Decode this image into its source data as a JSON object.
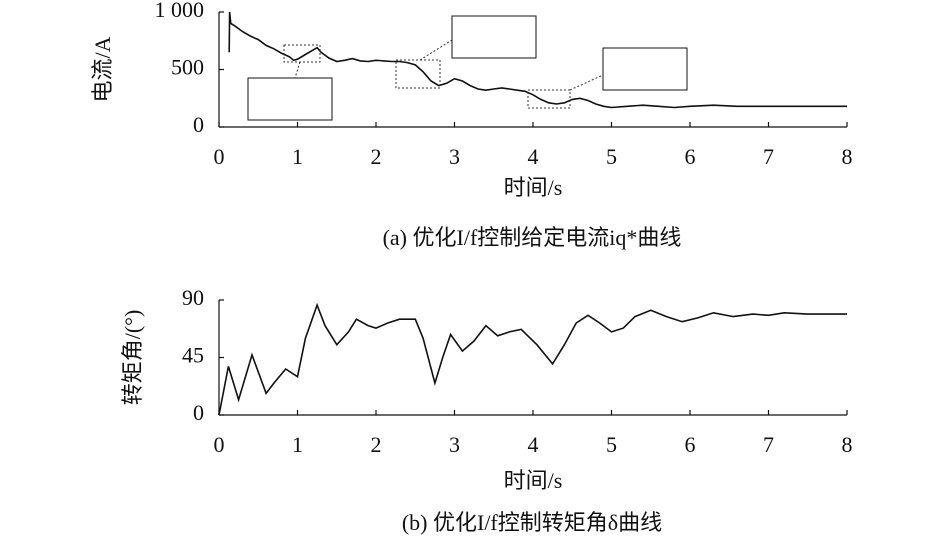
{
  "chart_data": [
    {
      "type": "line",
      "caption": "(a) 优化I/f控制给定电流iq*曲线",
      "x_label": "时间/s",
      "y_label": "电流/A",
      "xlim": [
        0,
        8
      ],
      "xticks": [
        0,
        1,
        2,
        3,
        4,
        5,
        6,
        7,
        8
      ],
      "ylim": [
        0,
        1000
      ],
      "yticks": [
        0,
        500,
        {
          "value": 1000,
          "label": "1 000"
        }
      ],
      "series": [
        {
          "color": "#111111",
          "x": [
            0.13,
            0.135,
            0.15,
            0.2,
            0.3,
            0.4,
            0.5,
            0.6,
            0.7,
            0.8,
            0.9,
            0.95,
            1.0,
            1.1,
            1.2,
            1.25,
            1.3,
            1.4,
            1.5,
            1.6,
            1.7,
            1.8,
            1.9,
            2.0,
            2.1,
            2.2,
            2.3,
            2.4,
            2.5,
            2.6,
            2.7,
            2.8,
            2.9,
            3.0,
            3.1,
            3.2,
            3.3,
            3.4,
            3.5,
            3.6,
            3.7,
            3.8,
            3.9,
            4.0,
            4.1,
            4.2,
            4.3,
            4.4,
            4.5,
            4.6,
            4.7,
            4.8,
            4.9,
            5.0,
            5.2,
            5.4,
            5.6,
            5.8,
            6.0,
            6.3,
            6.6,
            7.0,
            7.5,
            8.0
          ],
          "values": [
            650,
            1000,
            900,
            880,
            830,
            790,
            760,
            710,
            680,
            640,
            610,
            580,
            590,
            630,
            670,
            690,
            650,
            600,
            570,
            580,
            595,
            575,
            570,
            580,
            575,
            570,
            570,
            560,
            540,
            480,
            400,
            360,
            380,
            420,
            400,
            360,
            330,
            320,
            330,
            340,
            330,
            320,
            310,
            280,
            240,
            210,
            200,
            210,
            240,
            250,
            230,
            200,
            180,
            170,
            180,
            190,
            180,
            170,
            180,
            190,
            180,
            180,
            180,
            180
          ]
        }
      ]
    },
    {
      "type": "line",
      "caption": "(b) 优化I/f控制转矩角δ曲线",
      "x_label": "时间/s",
      "y_label": "转矩角/(°)",
      "xlim": [
        0,
        8
      ],
      "xticks": [
        0,
        1,
        2,
        3,
        4,
        5,
        6,
        7,
        8
      ],
      "ylim": [
        0,
        90
      ],
      "yticks": [
        0,
        45,
        90
      ],
      "series": [
        {
          "color": "#111111",
          "x": [
            0,
            0.12,
            0.25,
            0.42,
            0.6,
            0.7,
            0.85,
            1.0,
            1.1,
            1.25,
            1.35,
            1.5,
            1.65,
            1.75,
            1.9,
            2.0,
            2.15,
            2.3,
            2.5,
            2.6,
            2.75,
            2.85,
            2.95,
            3.1,
            3.25,
            3.4,
            3.55,
            3.7,
            3.85,
            4.05,
            4.25,
            4.4,
            4.55,
            4.7,
            4.85,
            5.0,
            5.15,
            5.3,
            5.5,
            5.7,
            5.9,
            6.1,
            6.3,
            6.55,
            6.8,
            7.0,
            7.2,
            7.5,
            8.0
          ],
          "values": [
            0,
            38,
            12,
            47,
            17,
            25,
            36,
            30,
            60,
            86,
            70,
            55,
            65,
            75,
            70,
            68,
            72,
            75,
            75,
            60,
            25,
            45,
            63,
            50,
            58,
            70,
            62,
            65,
            67,
            55,
            40,
            55,
            72,
            78,
            72,
            65,
            68,
            77,
            82,
            77,
            73,
            76,
            80,
            77,
            79,
            78,
            80,
            79,
            79
          ]
        }
      ]
    }
  ]
}
